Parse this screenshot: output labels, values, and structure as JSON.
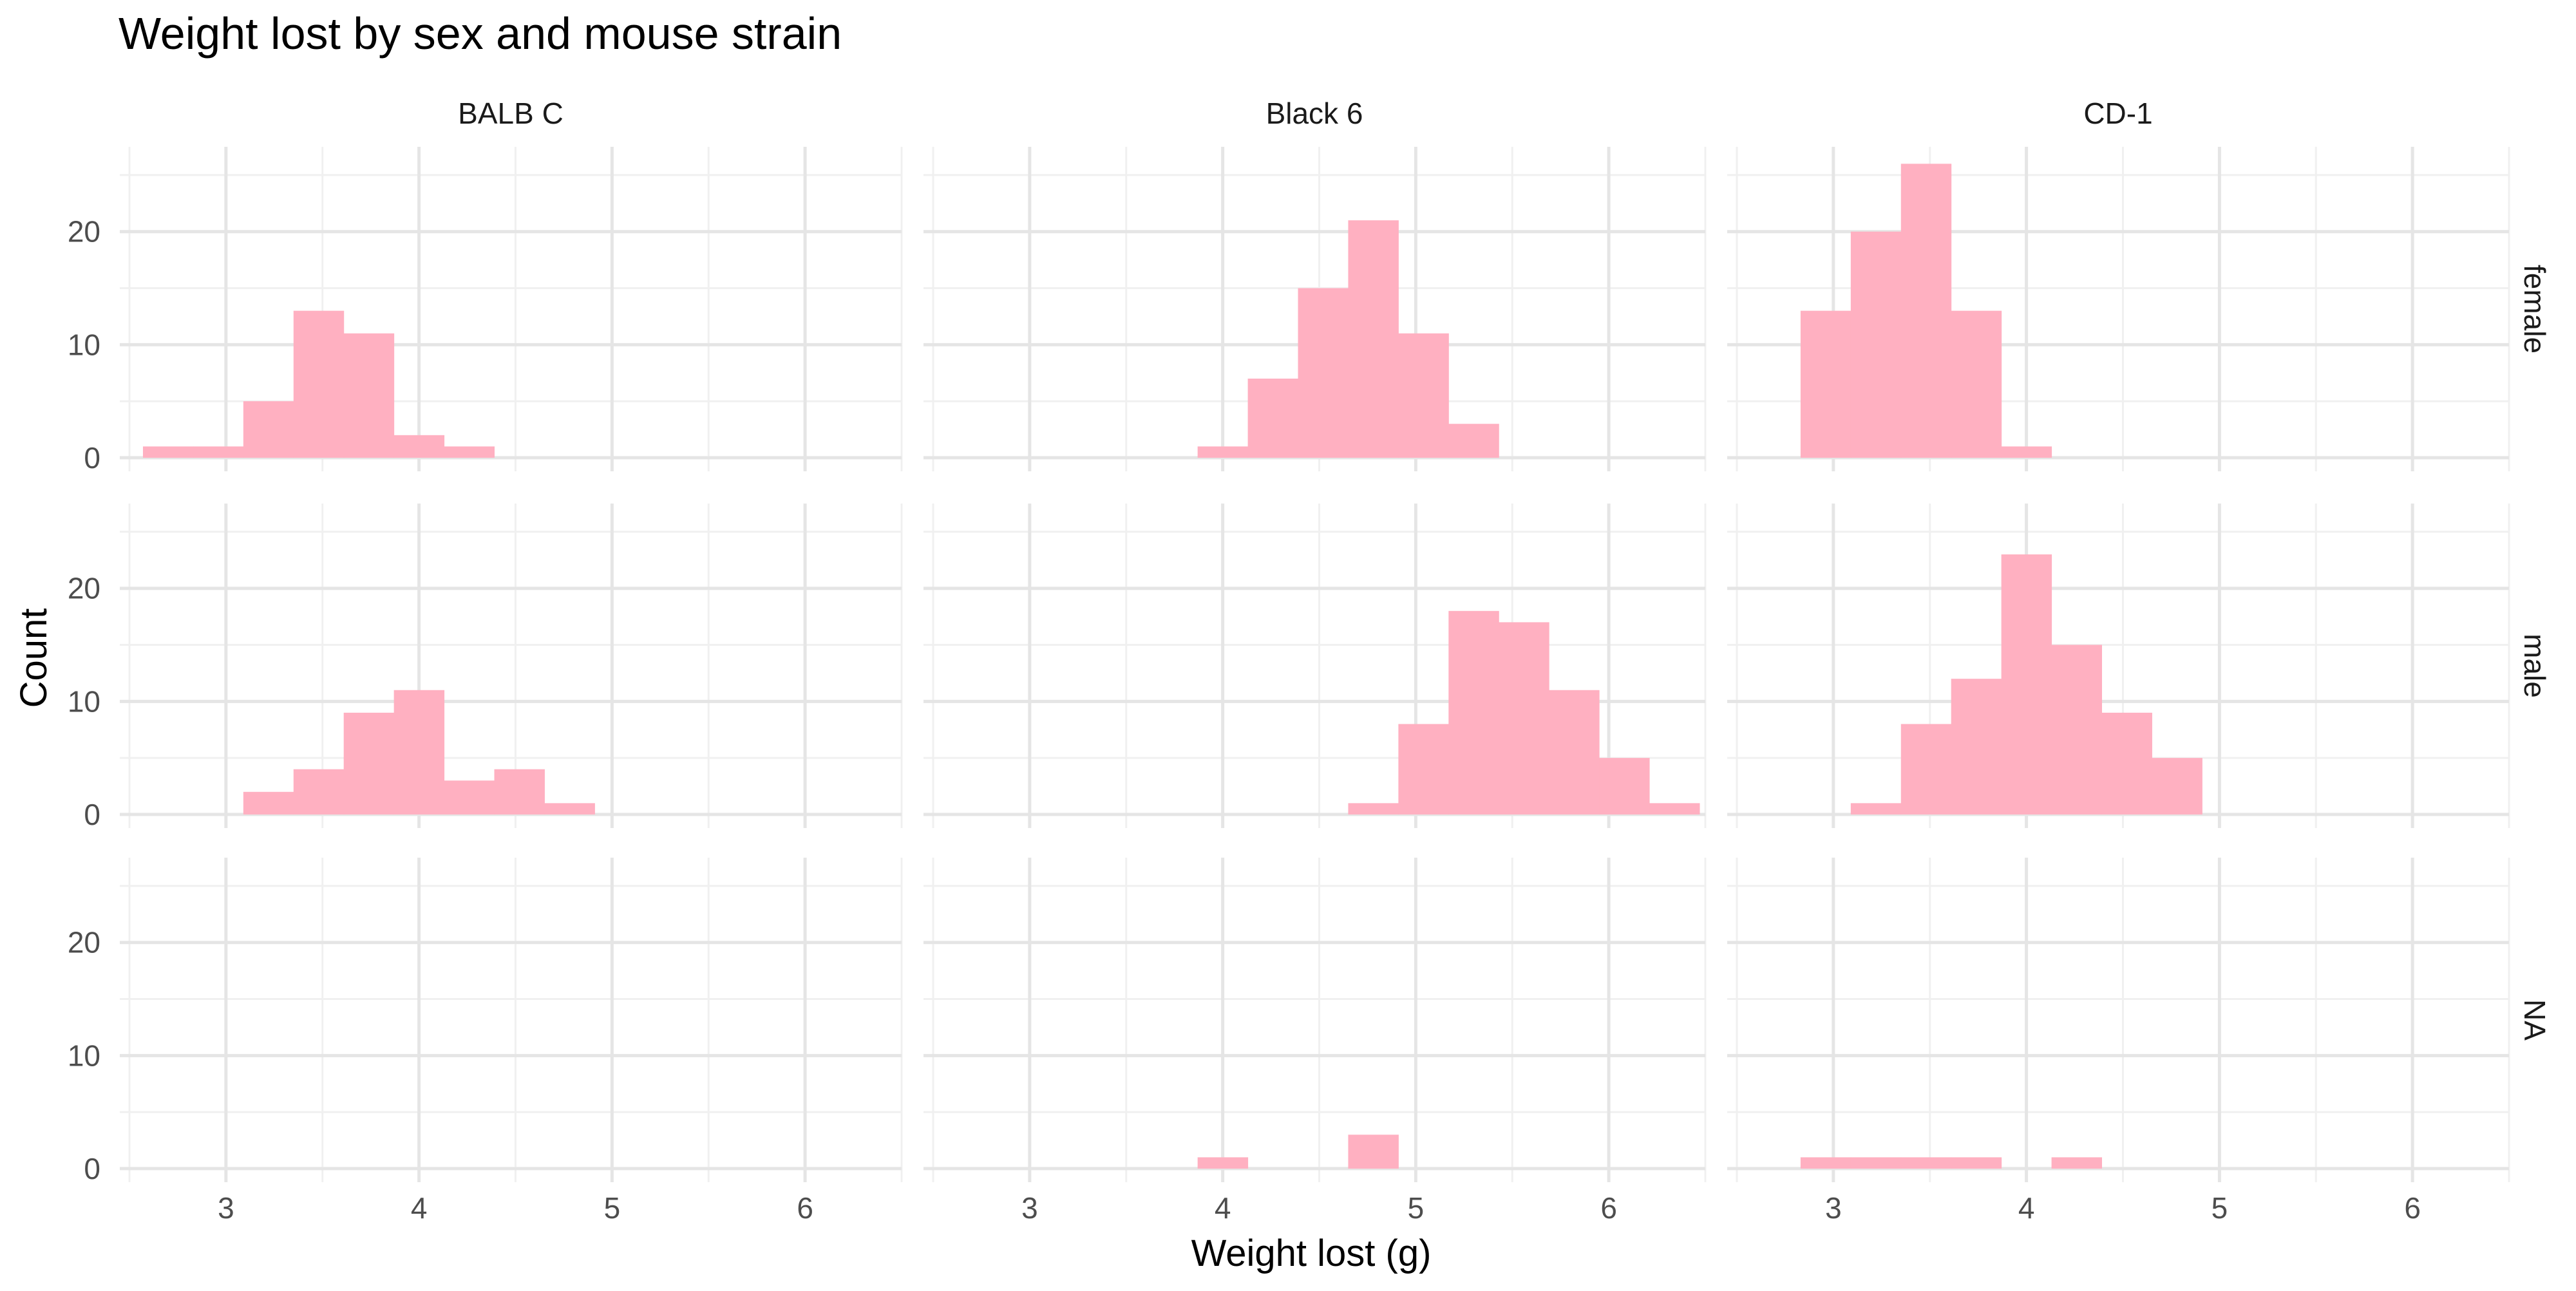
{
  "chart_data": {
    "type": "bar",
    "subtype": "faceted-histogram",
    "title": "Weight lost by sex and mouse strain",
    "xlabel": "Weight lost (g)",
    "ylabel": "Count",
    "xlim": [
      2.45,
      6.5
    ],
    "ylim": [
      -1.2,
      27.5
    ],
    "x_ticks": [
      3,
      4,
      5,
      6
    ],
    "y_ticks": [
      0,
      10,
      20
    ],
    "grid": true,
    "legend": "none",
    "bar_color": "#FFB0C1",
    "bin_width": 0.26,
    "columns": [
      "BALB C",
      "Black 6",
      "CD-1"
    ],
    "rows": [
      "female",
      "male",
      "NA"
    ],
    "panels": [
      {
        "col": "BALB C",
        "row": "female",
        "bins": [
          {
            "x0": 2.57,
            "x1": 2.83,
            "count": 1
          },
          {
            "x0": 2.83,
            "x1": 3.09,
            "count": 1
          },
          {
            "x0": 3.09,
            "x1": 3.35,
            "count": 5
          },
          {
            "x0": 3.35,
            "x1": 3.61,
            "count": 13
          },
          {
            "x0": 3.61,
            "x1": 3.87,
            "count": 11
          },
          {
            "x0": 3.87,
            "x1": 4.13,
            "count": 2
          },
          {
            "x0": 4.13,
            "x1": 4.39,
            "count": 1
          }
        ]
      },
      {
        "col": "Black 6",
        "row": "female",
        "bins": [
          {
            "x0": 3.87,
            "x1": 4.13,
            "count": 1
          },
          {
            "x0": 4.13,
            "x1": 4.39,
            "count": 7
          },
          {
            "x0": 4.39,
            "x1": 4.65,
            "count": 15
          },
          {
            "x0": 4.65,
            "x1": 4.91,
            "count": 21
          },
          {
            "x0": 4.91,
            "x1": 5.17,
            "count": 11
          },
          {
            "x0": 5.17,
            "x1": 5.43,
            "count": 3
          }
        ]
      },
      {
        "col": "CD-1",
        "row": "female",
        "bins": [
          {
            "x0": 2.83,
            "x1": 3.09,
            "count": 13
          },
          {
            "x0": 3.09,
            "x1": 3.35,
            "count": 20
          },
          {
            "x0": 3.35,
            "x1": 3.61,
            "count": 26
          },
          {
            "x0": 3.61,
            "x1": 3.87,
            "count": 13
          },
          {
            "x0": 3.87,
            "x1": 4.13,
            "count": 1
          }
        ]
      },
      {
        "col": "BALB C",
        "row": "male",
        "bins": [
          {
            "x0": 3.09,
            "x1": 3.35,
            "count": 2
          },
          {
            "x0": 3.35,
            "x1": 3.61,
            "count": 4
          },
          {
            "x0": 3.61,
            "x1": 3.87,
            "count": 9
          },
          {
            "x0": 3.87,
            "x1": 4.13,
            "count": 11
          },
          {
            "x0": 4.13,
            "x1": 4.39,
            "count": 3
          },
          {
            "x0": 4.39,
            "x1": 4.65,
            "count": 4
          },
          {
            "x0": 4.65,
            "x1": 4.91,
            "count": 1
          }
        ]
      },
      {
        "col": "Black 6",
        "row": "male",
        "bins": [
          {
            "x0": 4.65,
            "x1": 4.91,
            "count": 1
          },
          {
            "x0": 4.91,
            "x1": 5.17,
            "count": 8
          },
          {
            "x0": 5.17,
            "x1": 5.43,
            "count": 18
          },
          {
            "x0": 5.43,
            "x1": 5.69,
            "count": 17
          },
          {
            "x0": 5.69,
            "x1": 5.95,
            "count": 11
          },
          {
            "x0": 5.95,
            "x1": 6.21,
            "count": 5
          },
          {
            "x0": 6.21,
            "x1": 6.47,
            "count": 1
          }
        ]
      },
      {
        "col": "CD-1",
        "row": "male",
        "bins": [
          {
            "x0": 3.09,
            "x1": 3.35,
            "count": 1
          },
          {
            "x0": 3.35,
            "x1": 3.61,
            "count": 8
          },
          {
            "x0": 3.61,
            "x1": 3.87,
            "count": 12
          },
          {
            "x0": 3.87,
            "x1": 4.13,
            "count": 23
          },
          {
            "x0": 4.13,
            "x1": 4.39,
            "count": 15
          },
          {
            "x0": 4.39,
            "x1": 4.65,
            "count": 9
          },
          {
            "x0": 4.65,
            "x1": 4.91,
            "count": 5
          }
        ]
      },
      {
        "col": "BALB C",
        "row": "NA",
        "bins": []
      },
      {
        "col": "Black 6",
        "row": "NA",
        "bins": [
          {
            "x0": 3.87,
            "x1": 4.13,
            "count": 1
          },
          {
            "x0": 4.65,
            "x1": 4.91,
            "count": 3
          }
        ]
      },
      {
        "col": "CD-1",
        "row": "NA",
        "bins": [
          {
            "x0": 2.83,
            "x1": 3.09,
            "count": 1
          },
          {
            "x0": 3.09,
            "x1": 3.35,
            "count": 1
          },
          {
            "x0": 3.35,
            "x1": 3.61,
            "count": 1
          },
          {
            "x0": 3.61,
            "x1": 3.87,
            "count": 1
          },
          {
            "x0": 4.13,
            "x1": 4.39,
            "count": 1
          }
        ]
      }
    ]
  },
  "colors": {
    "background": "#FFFFFF",
    "grid_major": "#E5E5E5",
    "grid_minor": "#F0F0F0",
    "text": "#000000",
    "tick_text": "#4D4D4D"
  }
}
